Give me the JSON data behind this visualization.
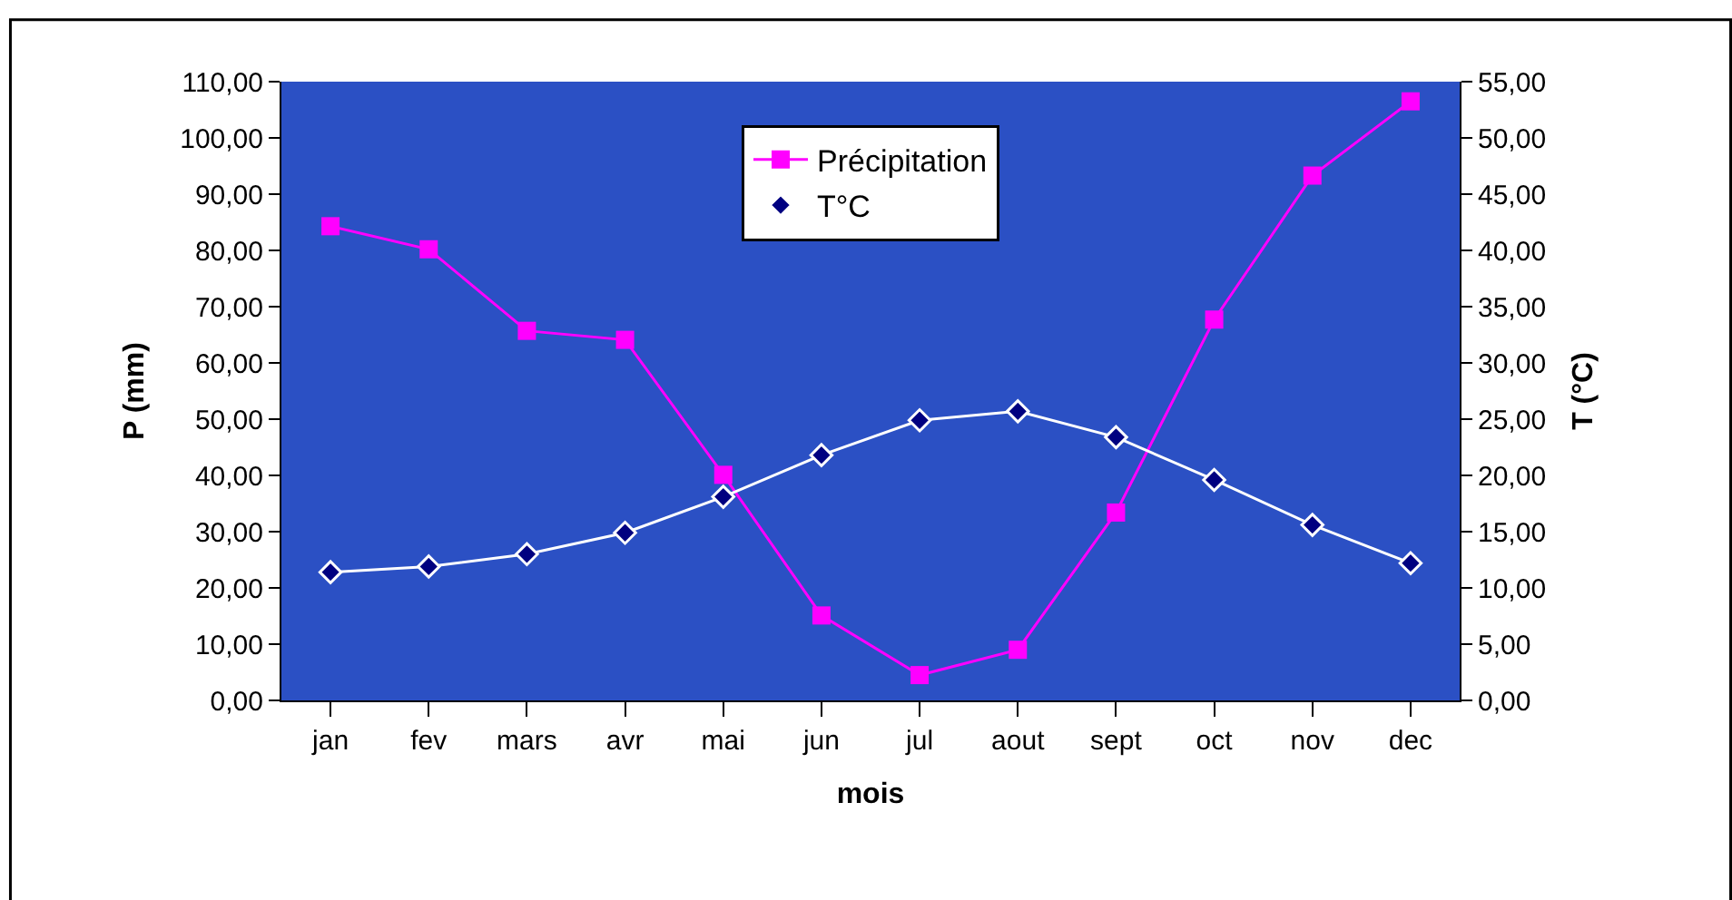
{
  "chart_data": {
    "type": "line",
    "xlabel": "mois",
    "ylabel": "P (mm)",
    "y2label": "T (°C)",
    "categories": [
      "jan",
      "fev",
      "mars",
      "avr",
      "mai",
      "jun",
      "jul",
      "aout",
      "sept",
      "oct",
      "nov",
      "dec"
    ],
    "series": [
      {
        "name": "Précipitation",
        "color": "#ff00ff",
        "marker": "square",
        "values": [
          84.3,
          80.2,
          65.7,
          64.1,
          40.1,
          15.1,
          4.5,
          9.0,
          33.4,
          67.7,
          93.3,
          106.5
        ]
      },
      {
        "name": "T°C",
        "color": "#ffffff",
        "marker": "diamond",
        "axis": "y2",
        "values": [
          11.4,
          11.9,
          13.0,
          14.9,
          18.1,
          21.8,
          24.9,
          25.7,
          23.4,
          19.6,
          15.6,
          12.2
        ]
      }
    ],
    "ylim": [
      0,
      110
    ],
    "yticks": [
      {
        "value": 0,
        "label": "0,00"
      },
      {
        "value": 10,
        "label": "10,00"
      },
      {
        "value": 20,
        "label": "20,00"
      },
      {
        "value": 30,
        "label": "30,00"
      },
      {
        "value": 40,
        "label": "40,00"
      },
      {
        "value": 50,
        "label": "50,00"
      },
      {
        "value": 60,
        "label": "60,00"
      },
      {
        "value": 70,
        "label": "70,00"
      },
      {
        "value": 80,
        "label": "80,00"
      },
      {
        "value": 90,
        "label": "90,00"
      },
      {
        "value": 100,
        "label": "100,00"
      },
      {
        "value": 110,
        "label": "110,00"
      }
    ],
    "y2lim": [
      0,
      55
    ],
    "y2ticks": [
      {
        "value": 0,
        "label": "0,00"
      },
      {
        "value": 5,
        "label": "5,00"
      },
      {
        "value": 10,
        "label": "10,00"
      },
      {
        "value": 15,
        "label": "15,00"
      },
      {
        "value": 20,
        "label": "20,00"
      },
      {
        "value": 25,
        "label": "25,00"
      },
      {
        "value": 30,
        "label": "30,00"
      },
      {
        "value": 35,
        "label": "35,00"
      },
      {
        "value": 40,
        "label": "40,00"
      },
      {
        "value": 45,
        "label": "45,00"
      },
      {
        "value": 50,
        "label": "50,00"
      },
      {
        "value": 55,
        "label": "55,00"
      }
    ],
    "grid": false,
    "legend": "top",
    "line_style": "solid"
  }
}
